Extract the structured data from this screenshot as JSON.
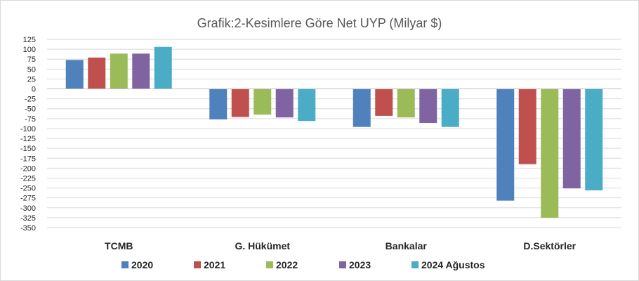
{
  "chart_data": {
    "type": "bar",
    "title": "Grafik:2-Kesimlere Göre Net UYP (Milyar $)",
    "xlabel": "",
    "ylabel": "",
    "categories": [
      "TCMB",
      "G. Hükümet",
      "Bankalar",
      "D.Sektörler"
    ],
    "ylim": [
      -350,
      125
    ],
    "yticks": [
      125,
      100,
      75,
      50,
      25,
      0,
      -25,
      -50,
      -75,
      -100,
      -125,
      -150,
      -175,
      -200,
      -225,
      -250,
      -275,
      -300,
      -325,
      -350
    ],
    "grid": true,
    "legend_position": "bottom",
    "series": [
      {
        "name": "2020",
        "color": "#4f81bd",
        "values": [
          73,
          -77,
          -96,
          -282
        ]
      },
      {
        "name": "2021",
        "color": "#c0504d",
        "values": [
          79,
          -71,
          -68,
          -190
        ]
      },
      {
        "name": "2022",
        "color": "#9bbb59",
        "values": [
          89,
          -65,
          -72,
          -325
        ]
      },
      {
        "name": "2023",
        "color": "#8064a2",
        "values": [
          89,
          -72,
          -86,
          -251
        ]
      },
      {
        "name": "2024 Ağustos",
        "color": "#4bacc6",
        "values": [
          106,
          -81,
          -96,
          -256
        ]
      }
    ]
  }
}
